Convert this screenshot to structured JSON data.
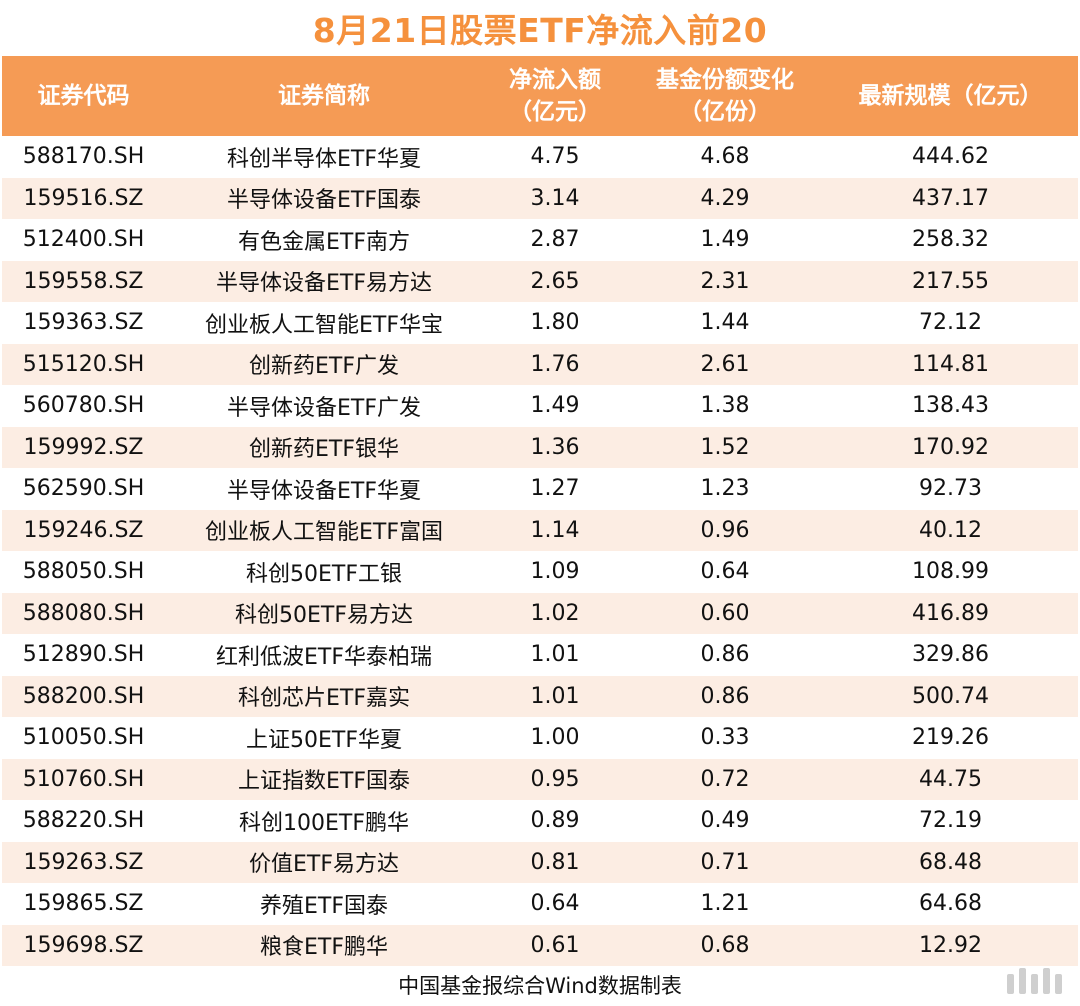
{
  "title": "8月21日股票ETF净流入前20",
  "table": {
    "headers": [
      {
        "line1": "证券代码",
        "line2": ""
      },
      {
        "line1": "证券简称",
        "line2": ""
      },
      {
        "line1": "净流入额",
        "line2": "（亿元）"
      },
      {
        "line1": "基金份额变化",
        "line2": "（亿份）"
      },
      {
        "line1": "最新规模（亿元）",
        "line2": ""
      }
    ],
    "rows": [
      [
        "588170.SH",
        "科创半导体ETF华夏",
        "4.75",
        "4.68",
        "444.62"
      ],
      [
        "159516.SZ",
        "半导体设备ETF国泰",
        "3.14",
        "4.29",
        "437.17"
      ],
      [
        "512400.SH",
        "有色金属ETF南方",
        "2.87",
        "1.49",
        "258.32"
      ],
      [
        "159558.SZ",
        "半导体设备ETF易方达",
        "2.65",
        "2.31",
        "217.55"
      ],
      [
        "159363.SZ",
        "创业板人工智能ETF华宝",
        "1.80",
        "1.44",
        "72.12"
      ],
      [
        "515120.SH",
        "创新药ETF广发",
        "1.76",
        "2.61",
        "114.81"
      ],
      [
        "560780.SH",
        "半导体设备ETF广发",
        "1.49",
        "1.38",
        "138.43"
      ],
      [
        "159992.SZ",
        "创新药ETF银华",
        "1.36",
        "1.52",
        "170.92"
      ],
      [
        "562590.SH",
        "半导体设备ETF华夏",
        "1.27",
        "1.23",
        "92.73"
      ],
      [
        "159246.SZ",
        "创业板人工智能ETF富国",
        "1.14",
        "0.96",
        "40.12"
      ],
      [
        "588050.SH",
        "科创50ETF工银",
        "1.09",
        "0.64",
        "108.99"
      ],
      [
        "588080.SH",
        "科创50ETF易方达",
        "1.02",
        "0.60",
        "416.89"
      ],
      [
        "512890.SH",
        "红利低波ETF华泰柏瑞",
        "1.01",
        "0.86",
        "329.86"
      ],
      [
        "588200.SH",
        "科创芯片ETF嘉实",
        "1.01",
        "0.86",
        "500.74"
      ],
      [
        "510050.SH",
        "上证50ETF华夏",
        "1.00",
        "0.33",
        "219.26"
      ],
      [
        "510760.SH",
        "上证指数ETF国泰",
        "0.95",
        "0.72",
        "44.75"
      ],
      [
        "588220.SH",
        "科创100ETF鹏华",
        "0.89",
        "0.49",
        "72.19"
      ],
      [
        "159263.SZ",
        "价值ETF易方达",
        "0.81",
        "0.71",
        "68.48"
      ],
      [
        "159865.SZ",
        "养殖ETF国泰",
        "0.64",
        "1.21",
        "64.68"
      ],
      [
        "159698.SZ",
        "粮食ETF鹏华",
        "0.61",
        "0.68",
        "12.92"
      ]
    ]
  },
  "footer": "中国基金报综合Wind数据制表",
  "colors": {
    "title": "#f5913d",
    "header_bg": "#f59b55",
    "stripe": "#fcede3"
  }
}
